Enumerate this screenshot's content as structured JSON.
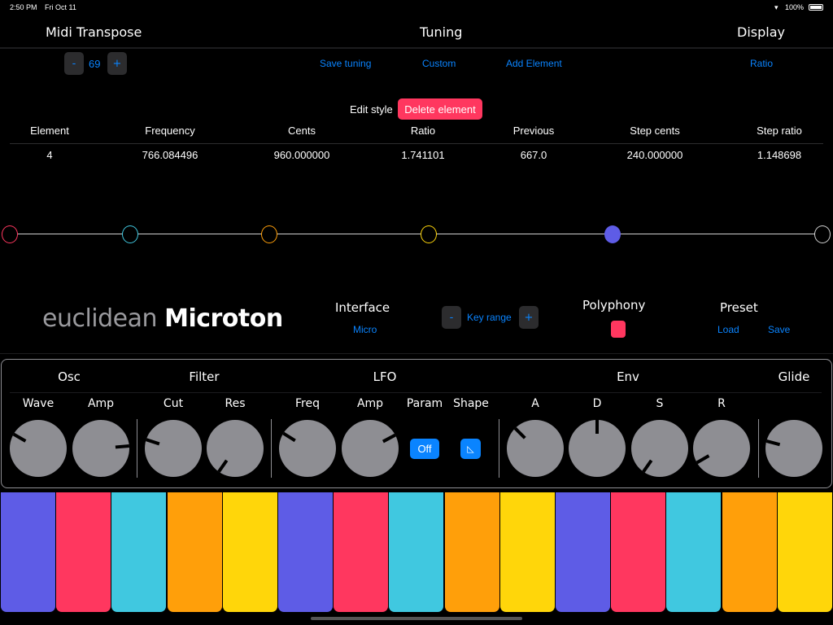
{
  "status_bar": {
    "time": "2:50 PM",
    "date": "Fri Oct 11",
    "battery": "100%"
  },
  "header": {
    "midi_transpose": "Midi Transpose",
    "tuning": "Tuning",
    "display": "Display"
  },
  "transpose": {
    "minus": "-",
    "value": "69",
    "plus": "+"
  },
  "tuning_actions": {
    "save": "Save tuning",
    "custom": "Custom",
    "add": "Add Element"
  },
  "display_mode": "Ratio",
  "edit": {
    "label": "Edit style",
    "delete": "Delete element"
  },
  "table": {
    "headers": [
      "Element",
      "Frequency",
      "Cents",
      "Ratio",
      "Previous",
      "Step cents",
      "Step ratio"
    ],
    "row": [
      "4",
      "766.084496",
      "960.000000",
      "1.741101",
      "667.0",
      "240.000000",
      "1.148698"
    ]
  },
  "scale_nodes": [
    {
      "color": "#ff375f",
      "filled": false
    },
    {
      "color": "#40c8e0",
      "filled": false
    },
    {
      "color": "#ff9f0a",
      "filled": false
    },
    {
      "color": "#ffd60a",
      "filled": false
    },
    {
      "color": "#5e5ce6",
      "filled": true
    },
    {
      "color": "#d0d0d0",
      "filled": false
    }
  ],
  "brand": {
    "prefix": "euclidean",
    "name": "Microton"
  },
  "interface": {
    "label": "Interface",
    "value": "Micro"
  },
  "key_range": {
    "minus": "-",
    "label": "Key range",
    "plus": "+"
  },
  "polyphony": {
    "label": "Polyphony",
    "color": "#ff375f"
  },
  "preset": {
    "label": "Preset",
    "load": "Load",
    "save": "Save"
  },
  "synth": {
    "sections": [
      "Osc",
      "Filter",
      "LFO",
      "Env",
      "Glide"
    ],
    "knobs": [
      {
        "label": "Wave",
        "angle": -60
      },
      {
        "label": "Amp",
        "angle": 85
      },
      {
        "label": "Cut",
        "angle": -72
      },
      {
        "label": "Res",
        "angle": -145
      },
      {
        "label": "Freq",
        "angle": -58
      },
      {
        "label": "Amp",
        "angle": 62
      },
      {
        "label": "A",
        "angle": -45
      },
      {
        "label": "D",
        "angle": 0
      },
      {
        "label": "S",
        "angle": -145
      },
      {
        "label": "R",
        "angle": -120
      },
      {
        "label": "",
        "angle": -75
      }
    ],
    "param_label": "Param",
    "param_value": "Off",
    "shape_label": "Shape",
    "shape_icon": "◺"
  },
  "keys": [
    "#5e5ce6",
    "#ff375f",
    "#40c8e0",
    "#ff9f0a",
    "#ffd60a",
    "#5e5ce6",
    "#ff375f",
    "#40c8e0",
    "#ff9f0a",
    "#ffd60a",
    "#5e5ce6",
    "#ff375f",
    "#40c8e0",
    "#ff9f0a",
    "#ffd60a"
  ]
}
